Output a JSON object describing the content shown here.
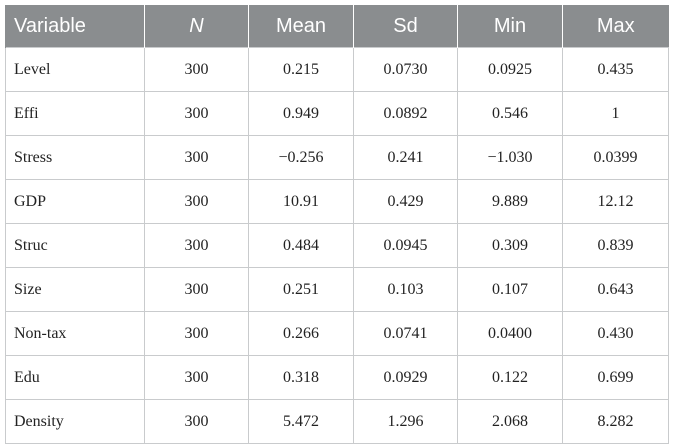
{
  "table": {
    "headers": [
      "Variable",
      "N",
      "Mean",
      "Sd",
      "Min",
      "Max"
    ],
    "rows": [
      [
        "Level",
        "300",
        "0.215",
        "0.0730",
        "0.0925",
        "0.435"
      ],
      [
        "Effi",
        "300",
        "0.949",
        "0.0892",
        "0.546",
        "1"
      ],
      [
        "Stress",
        "300",
        "−0.256",
        "0.241",
        "−1.030",
        "0.0399"
      ],
      [
        "GDP",
        "300",
        "10.91",
        "0.429",
        "9.889",
        "12.12"
      ],
      [
        "Struc",
        "300",
        "0.484",
        "0.0945",
        "0.309",
        "0.839"
      ],
      [
        "Size",
        "300",
        "0.251",
        "0.103",
        "0.107",
        "0.643"
      ],
      [
        "Non-tax",
        "300",
        "0.266",
        "0.0741",
        "0.0400",
        "0.430"
      ],
      [
        "Edu",
        "300",
        "0.318",
        "0.0929",
        "0.122",
        "0.699"
      ],
      [
        "Density",
        "300",
        "5.472",
        "1.296",
        "2.068",
        "8.282"
      ]
    ]
  },
  "colors": {
    "header_bg": "#8a8d8f",
    "header_text": "#ffffff",
    "grid": "#c9cbcd"
  }
}
